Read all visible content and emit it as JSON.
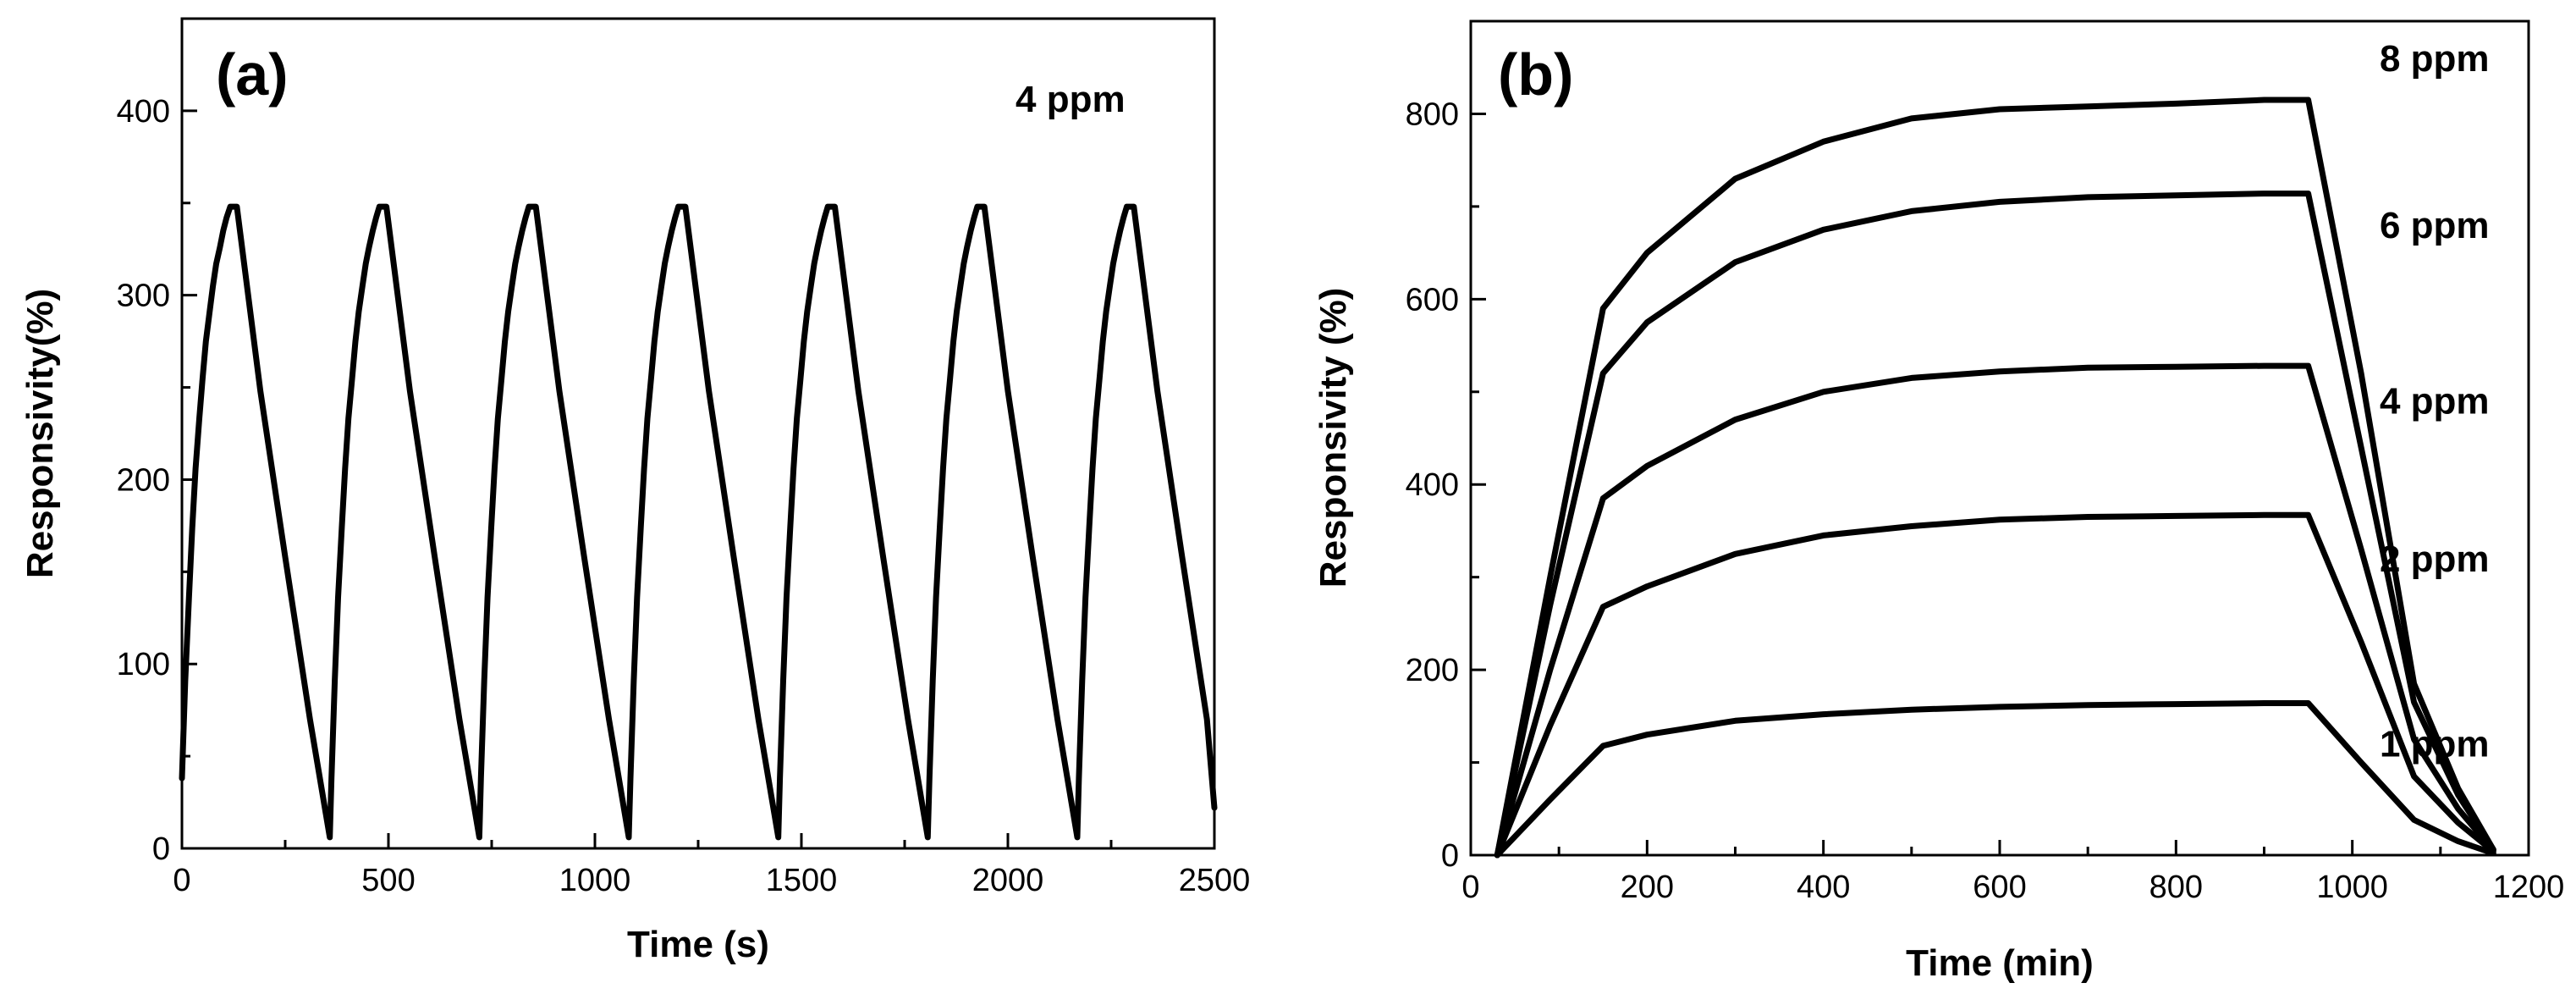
{
  "chart_data": [
    {
      "type": "line",
      "panel_label": "(a)",
      "annotation": "4 ppm",
      "xlabel": "Time (s)",
      "ylabel": "Responsivity(%)",
      "xlim": [
        0,
        2500
      ],
      "ylim": [
        0,
        450
      ],
      "xticks": [
        0,
        500,
        1000,
        1500,
        2000,
        2500
      ],
      "yticks": [
        0,
        100,
        200,
        300,
        400
      ],
      "series": [
        {
          "name": "4 ppm cycles",
          "x": [
            0,
            8,
            17,
            25,
            33,
            42,
            50,
            58,
            67,
            75,
            83,
            92,
            100,
            108,
            117,
            125,
            133,
            190,
            250,
            310,
            358,
            362,
            370,
            378,
            387,
            395,
            403,
            412,
            420,
            428,
            437,
            445,
            453,
            462,
            470,
            478,
            487,
            495,
            552,
            612,
            672,
            720,
            724,
            732,
            740,
            749,
            757,
            765,
            774,
            782,
            790,
            799,
            807,
            815,
            824,
            832,
            840,
            849,
            857,
            914,
            974,
            1034,
            1082,
            1086,
            1094,
            1102,
            1111,
            1119,
            1127,
            1136,
            1144,
            1152,
            1161,
            1169,
            1177,
            1186,
            1194,
            1202,
            1211,
            1219,
            1276,
            1336,
            1396,
            1444,
            1448,
            1456,
            1464,
            1473,
            1481,
            1489,
            1498,
            1506,
            1514,
            1523,
            1531,
            1539,
            1548,
            1556,
            1564,
            1573,
            1581,
            1638,
            1698,
            1758,
            1806,
            1810,
            1818,
            1826,
            1835,
            1843,
            1851,
            1860,
            1868,
            1876,
            1885,
            1893,
            1901,
            1910,
            1918,
            1926,
            1935,
            1943,
            2000,
            2060,
            2120,
            2168,
            2172,
            2180,
            2188,
            2197,
            2205,
            2213,
            2222,
            2230,
            2238,
            2247,
            2255,
            2263,
            2272,
            2280,
            2288,
            2297,
            2305,
            2362,
            2422,
            2482,
            2500
          ],
          "y": [
            38,
            91,
            136,
            174,
            206,
            233,
            255,
            275,
            291,
            305,
            317,
            326,
            335,
            342,
            348,
            348,
            348,
            248,
            158,
            70,
            6,
            38,
            91,
            136,
            174,
            206,
            233,
            255,
            275,
            291,
            305,
            317,
            326,
            335,
            342,
            348,
            348,
            348,
            248,
            158,
            70,
            6,
            38,
            91,
            136,
            174,
            206,
            233,
            255,
            275,
            291,
            305,
            317,
            326,
            335,
            342,
            348,
            348,
            348,
            248,
            158,
            70,
            6,
            38,
            91,
            136,
            174,
            206,
            233,
            255,
            275,
            291,
            305,
            317,
            326,
            335,
            342,
            348,
            348,
            348,
            248,
            158,
            70,
            6,
            38,
            91,
            136,
            174,
            206,
            233,
            255,
            275,
            291,
            305,
            317,
            326,
            335,
            342,
            348,
            348,
            348,
            248,
            158,
            70,
            6,
            38,
            91,
            136,
            174,
            206,
            233,
            255,
            275,
            291,
            305,
            317,
            326,
            335,
            342,
            348,
            348,
            348,
            248,
            158,
            70,
            6,
            38,
            91,
            136,
            174,
            206,
            233,
            255,
            275,
            291,
            305,
            317,
            326,
            335,
            342,
            348,
            348,
            348,
            248,
            158,
            70,
            22
          ]
        }
      ]
    },
    {
      "type": "line",
      "panel_label": "(b)",
      "xlabel": "Time (min)",
      "ylabel": "Responsivity (%)",
      "xlim": [
        0,
        1200
      ],
      "ylim": [
        0,
        900
      ],
      "xticks": [
        0,
        200,
        400,
        600,
        800,
        1000,
        1200
      ],
      "yticks": [
        0,
        200,
        400,
        600,
        800
      ],
      "series": [
        {
          "name": "1 ppm",
          "label_x": 1170,
          "label_y": 120,
          "x": [
            30,
            90,
            150,
            200,
            300,
            400,
            500,
            600,
            700,
            800,
            900,
            950,
            1010,
            1070,
            1120,
            1160
          ],
          "y": [
            0,
            60,
            118,
            130,
            145,
            152,
            157,
            160,
            162,
            163,
            164,
            164,
            100,
            38,
            15,
            2
          ]
        },
        {
          "name": "2 ppm",
          "label_x": 1170,
          "label_y": 320,
          "x": [
            30,
            90,
            150,
            200,
            300,
            400,
            500,
            600,
            700,
            800,
            900,
            950,
            1010,
            1070,
            1120,
            1160
          ],
          "y": [
            0,
            140,
            268,
            290,
            325,
            345,
            355,
            362,
            365,
            366,
            367,
            367,
            230,
            85,
            35,
            4
          ]
        },
        {
          "name": "4 ppm",
          "label_x": 1170,
          "label_y": 490,
          "x": [
            30,
            90,
            150,
            200,
            300,
            400,
            500,
            600,
            700,
            800,
            900,
            950,
            1010,
            1070,
            1120,
            1160
          ],
          "y": [
            0,
            200,
            385,
            420,
            470,
            500,
            515,
            522,
            526,
            527,
            528,
            528,
            330,
            125,
            50,
            5
          ]
        },
        {
          "name": "6 ppm",
          "label_x": 1170,
          "label_y": 680,
          "x": [
            30,
            90,
            150,
            200,
            300,
            400,
            500,
            600,
            700,
            800,
            900,
            950,
            1010,
            1070,
            1120,
            1160
          ],
          "y": [
            0,
            270,
            520,
            575,
            640,
            675,
            695,
            705,
            710,
            712,
            714,
            714,
            440,
            165,
            65,
            6
          ]
        },
        {
          "name": "8 ppm",
          "label_x": 1170,
          "label_y": 860,
          "x": [
            30,
            90,
            150,
            200,
            300,
            400,
            500,
            600,
            700,
            800,
            900,
            950,
            1010,
            1070,
            1120,
            1160
          ],
          "y": [
            0,
            300,
            590,
            650,
            730,
            770,
            795,
            805,
            808,
            811,
            815,
            815,
            520,
            185,
            72,
            6
          ]
        }
      ]
    }
  ]
}
